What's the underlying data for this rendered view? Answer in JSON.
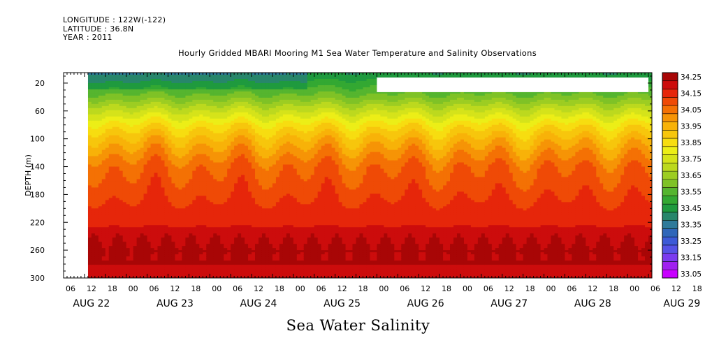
{
  "header": {
    "longitude": "LONGITUDE : 122W(-122)",
    "latitude": "LATITUDE : 36.8N",
    "year": "YEAR : 2011"
  },
  "title": "Hourly Gridded MBARI Mooring M1 Sea Water Temperature and Salinity Observations",
  "bottom_title": "Sea Water Salinity",
  "chart_data": {
    "type": "heatmap",
    "title": "Hourly Gridded MBARI Mooring M1 Sea Water Temperature and Salinity Observations",
    "variable": "Sea Water Salinity",
    "ylabel": "DEPTH (m)",
    "ylim": [
      300,
      5
    ],
    "y_reversed": true,
    "y_ticks": [
      20,
      60,
      100,
      140,
      180,
      220,
      260,
      300
    ],
    "x_hour_ticks": [
      "06",
      "12",
      "18",
      "00",
      "06",
      "12",
      "18",
      "00",
      "06",
      "12",
      "18",
      "00",
      "06",
      "12",
      "18",
      "00",
      "06",
      "12",
      "18",
      "00",
      "06",
      "12",
      "18",
      "00",
      "06",
      "12",
      "18",
      "00",
      "06",
      "12",
      "18",
      "00"
    ],
    "x_day_labels": [
      "AUG 22",
      "AUG 23",
      "AUG 24",
      "AUG 25",
      "AUG 26",
      "AUG 27",
      "AUG 28",
      "AUG 29"
    ],
    "x_range_hours": [
      0,
      169
    ],
    "data_start_hour": 7,
    "no_data_box": {
      "from_hour": 90,
      "to_hour": 168,
      "depth_top": 12,
      "depth_bottom": 33
    },
    "colorbar": {
      "levels": [
        33.05,
        33.1,
        33.15,
        33.2,
        33.25,
        33.3,
        33.35,
        33.4,
        33.45,
        33.5,
        33.55,
        33.6,
        33.65,
        33.7,
        33.75,
        33.8,
        33.85,
        33.9,
        33.95,
        34.0,
        34.05,
        34.1,
        34.15,
        34.2,
        34.25,
        34.3
      ],
      "tick_labels": [
        "33.05",
        "33.15",
        "33.25",
        "33.35",
        "33.45",
        "33.55",
        "33.65",
        "33.75",
        "33.85",
        "33.95",
        "34.05",
        "34.15",
        "34.25"
      ],
      "colors": [
        "#c800ff",
        "#a020f0",
        "#7b3bef",
        "#5552e6",
        "#3c5ad7",
        "#2f66b9",
        "#2e7a9a",
        "#28866b",
        "#1f9a3e",
        "#33a832",
        "#55b52f",
        "#7fc226",
        "#9dcd22",
        "#bcd91e",
        "#d5e31a",
        "#ecee17",
        "#f7dd10",
        "#f7c60c",
        "#f8b208",
        "#f69406",
        "#f47104",
        "#ef4a06",
        "#e6260a",
        "#cc0c0c",
        "#a80606"
      ]
    },
    "salinity_profile": [
      {
        "depth": 5,
        "salinity": 33.45
      },
      {
        "depth": 20,
        "salinity": 33.52
      },
      {
        "depth": 40,
        "salinity": 33.62
      },
      {
        "depth": 60,
        "salinity": 33.75
      },
      {
        "depth": 80,
        "salinity": 33.87
      },
      {
        "depth": 100,
        "salinity": 33.96
      },
      {
        "depth": 120,
        "salinity": 34.03
      },
      {
        "depth": 140,
        "salinity": 34.09
      },
      {
        "depth": 180,
        "salinity": 34.14
      },
      {
        "depth": 220,
        "salinity": 34.19
      },
      {
        "depth": 260,
        "salinity": 34.26
      },
      {
        "depth": 300,
        "salinity": 34.24
      }
    ]
  }
}
